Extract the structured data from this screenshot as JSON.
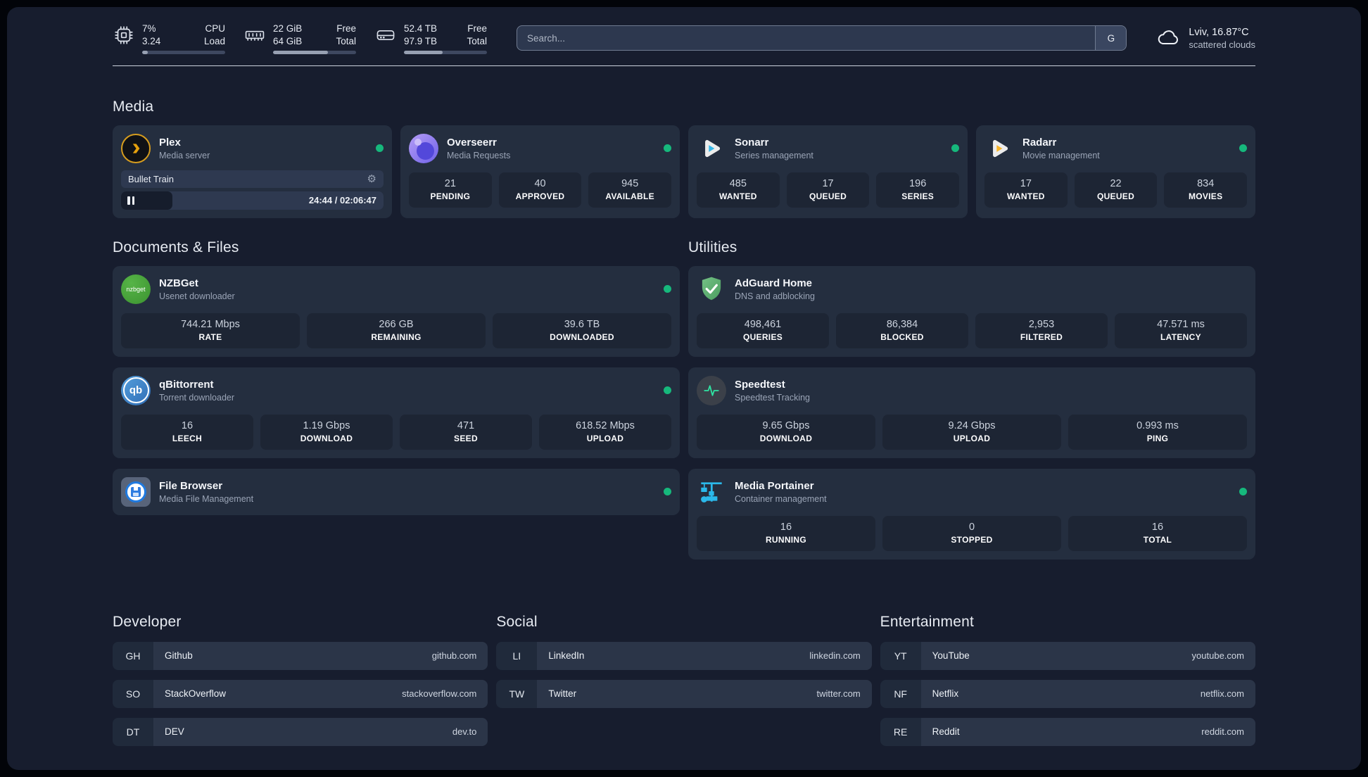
{
  "header": {
    "stats": [
      {
        "icon": "cpu-icon",
        "value_top": "7%",
        "value_bottom": "3.24",
        "label_top": "CPU",
        "label_bottom": "Load",
        "progress_pct": 7
      },
      {
        "icon": "ram-icon",
        "value_top": "22 GiB",
        "value_bottom": "64 GiB",
        "label_top": "Free",
        "label_bottom": "Total",
        "progress_pct": 66
      },
      {
        "icon": "disk-icon",
        "value_top": "52.4 TB",
        "value_bottom": "97.9 TB",
        "label_top": "Free",
        "label_bottom": "Total",
        "progress_pct": 47
      }
    ],
    "search": {
      "placeholder": "Search...",
      "engine_button": "G"
    },
    "weather": {
      "location_temp": "Lviv, 16.87°C",
      "condition": "scattered clouds"
    }
  },
  "media": {
    "title": "Media",
    "plex": {
      "title": "Plex",
      "subtitle": "Media server",
      "now_playing": "Bullet Train",
      "time": "24:44 / 02:06:47",
      "progress_pct": 19.5
    },
    "overseerr": {
      "title": "Overseerr",
      "subtitle": "Media Requests",
      "stats": [
        {
          "value": "21",
          "label": "PENDING"
        },
        {
          "value": "40",
          "label": "APPROVED"
        },
        {
          "value": "945",
          "label": "AVAILABLE"
        }
      ]
    },
    "sonarr": {
      "title": "Sonarr",
      "subtitle": "Series management",
      "stats": [
        {
          "value": "485",
          "label": "WANTED"
        },
        {
          "value": "17",
          "label": "QUEUED"
        },
        {
          "value": "196",
          "label": "SERIES"
        }
      ]
    },
    "radarr": {
      "title": "Radarr",
      "subtitle": "Movie management",
      "stats": [
        {
          "value": "17",
          "label": "WANTED"
        },
        {
          "value": "22",
          "label": "QUEUED"
        },
        {
          "value": "834",
          "label": "MOVIES"
        }
      ]
    }
  },
  "documents": {
    "title": "Documents & Files",
    "nzbget": {
      "title": "NZBGet",
      "subtitle": "Usenet downloader",
      "icon_text": "nzbget",
      "stats": [
        {
          "value": "744.21 Mbps",
          "label": "RATE"
        },
        {
          "value": "266 GB",
          "label": "REMAINING"
        },
        {
          "value": "39.6 TB",
          "label": "DOWNLOADED"
        }
      ]
    },
    "qbittorrent": {
      "title": "qBittorrent",
      "subtitle": "Torrent downloader",
      "icon_text": "qb",
      "stats": [
        {
          "value": "16",
          "label": "LEECH"
        },
        {
          "value": "1.19 Gbps",
          "label": "DOWNLOAD"
        },
        {
          "value": "471",
          "label": "SEED"
        },
        {
          "value": "618.52 Mbps",
          "label": "UPLOAD"
        }
      ]
    },
    "filebrowser": {
      "title": "File Browser",
      "subtitle": "Media File Management"
    }
  },
  "utilities": {
    "title": "Utilities",
    "adguard": {
      "title": "AdGuard Home",
      "subtitle": "DNS and adblocking",
      "stats": [
        {
          "value": "498,461",
          "label": "QUERIES"
        },
        {
          "value": "86,384",
          "label": "BLOCKED"
        },
        {
          "value": "2,953",
          "label": "FILTERED"
        },
        {
          "value": "47.571 ms",
          "label": "LATENCY"
        }
      ]
    },
    "speedtest": {
      "title": "Speedtest",
      "subtitle": "Speedtest Tracking",
      "stats": [
        {
          "value": "9.65 Gbps",
          "label": "DOWNLOAD"
        },
        {
          "value": "9.24 Gbps",
          "label": "UPLOAD"
        },
        {
          "value": "0.993 ms",
          "label": "PING"
        }
      ]
    },
    "portainer": {
      "title": "Media Portainer",
      "subtitle": "Container management",
      "stats": [
        {
          "value": "16",
          "label": "RUNNING"
        },
        {
          "value": "0",
          "label": "STOPPED"
        },
        {
          "value": "16",
          "label": "TOTAL"
        }
      ]
    }
  },
  "bookmarks": {
    "developer": {
      "title": "Developer",
      "items": [
        {
          "abbr": "GH",
          "name": "Github",
          "url": "github.com"
        },
        {
          "abbr": "SO",
          "name": "StackOverflow",
          "url": "stackoverflow.com"
        },
        {
          "abbr": "DT",
          "name": "DEV",
          "url": "dev.to"
        }
      ]
    },
    "social": {
      "title": "Social",
      "items": [
        {
          "abbr": "LI",
          "name": "LinkedIn",
          "url": "linkedin.com"
        },
        {
          "abbr": "TW",
          "name": "Twitter",
          "url": "twitter.com"
        }
      ]
    },
    "entertainment": {
      "title": "Entertainment",
      "items": [
        {
          "abbr": "YT",
          "name": "YouTube",
          "url": "youtube.com"
        },
        {
          "abbr": "NF",
          "name": "Netflix",
          "url": "netflix.com"
        },
        {
          "abbr": "RE",
          "name": "Reddit",
          "url": "reddit.com"
        }
      ]
    }
  },
  "colors": {
    "status_online": "#16b87c",
    "plex_accent": "#d79d1e",
    "sonarr_accent": "#35b8e8",
    "radarr_accent": "#f8b52a",
    "portainer_accent": "#2bb8ea"
  }
}
